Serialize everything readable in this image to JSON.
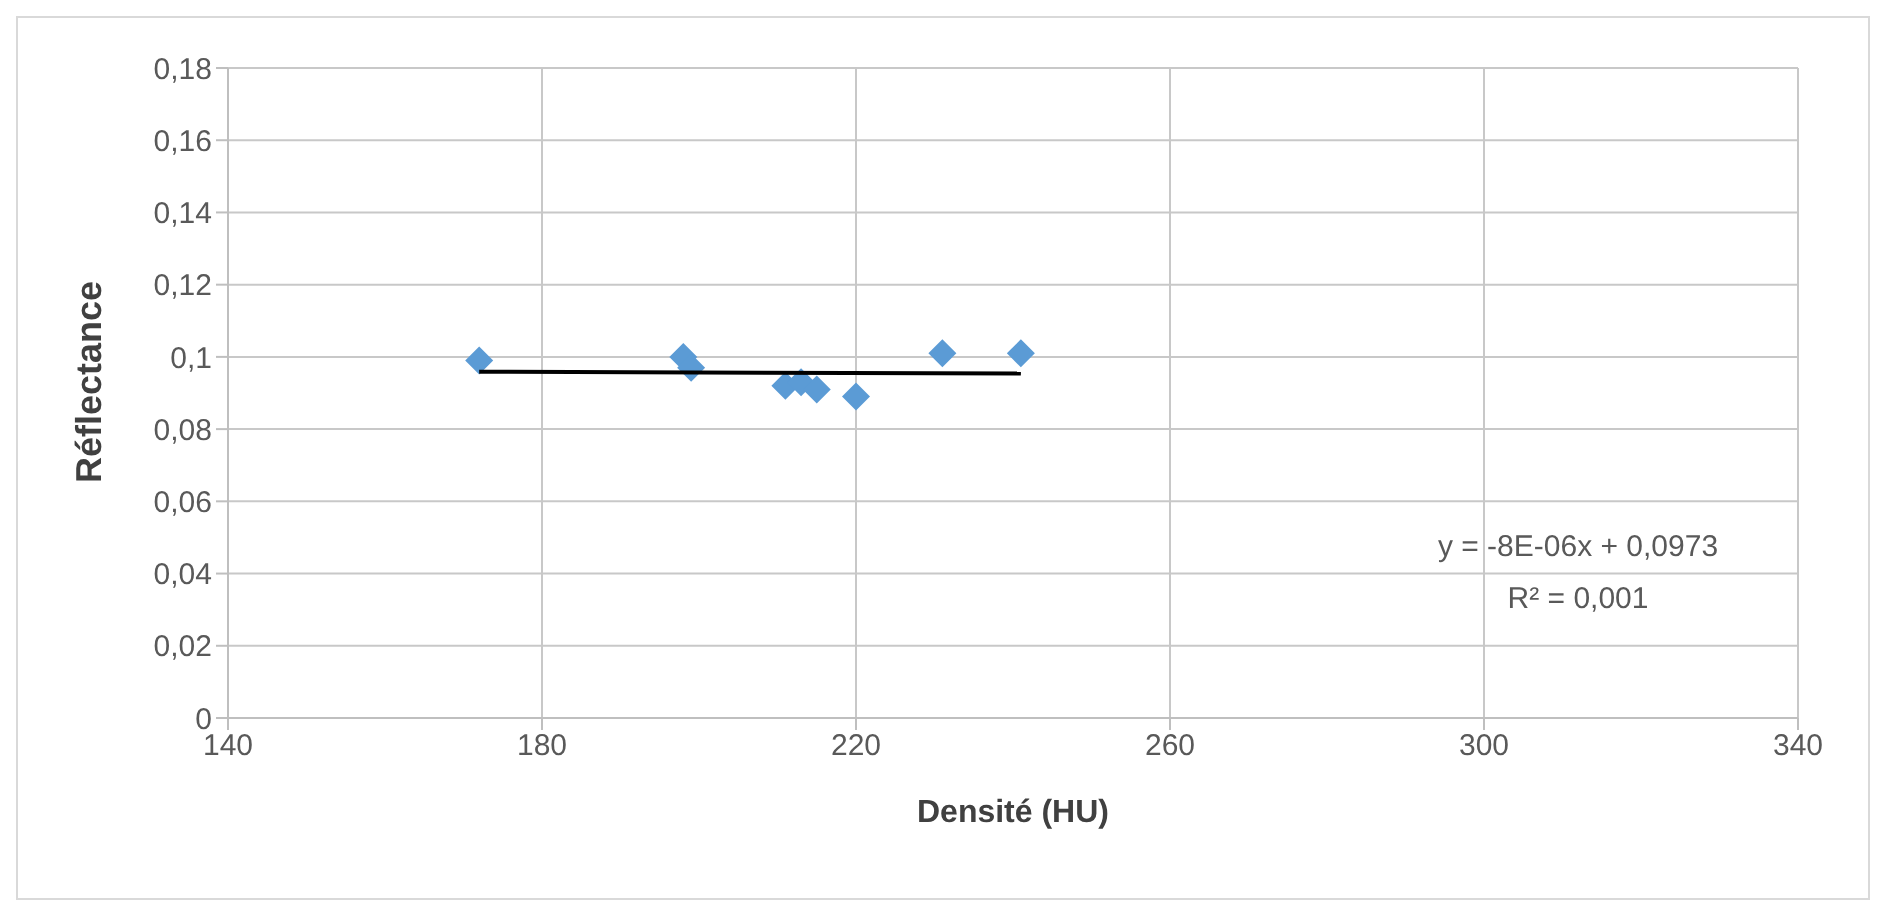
{
  "chart_data": {
    "type": "scatter",
    "xlabel": "Densité (HU)",
    "ylabel": "Réflectance",
    "xlim": [
      140,
      340
    ],
    "xticks": [
      140,
      180,
      220,
      260,
      300,
      340
    ],
    "ylim": [
      0,
      0.18
    ],
    "yticks": [
      {
        "value": 0,
        "label": "0"
      },
      {
        "value": 0.02,
        "label": "0,02"
      },
      {
        "value": 0.04,
        "label": "0,04"
      },
      {
        "value": 0.06,
        "label": "0,06"
      },
      {
        "value": 0.08,
        "label": "0,08"
      },
      {
        "value": 0.1,
        "label": "0,1"
      },
      {
        "value": 0.12,
        "label": "0,12"
      },
      {
        "value": 0.14,
        "label": "0,14"
      },
      {
        "value": 0.16,
        "label": "0,16"
      },
      {
        "value": 0.18,
        "label": "0,18"
      }
    ],
    "grid": true,
    "series": [
      {
        "color": "#5b9bd5",
        "marker": "diamond",
        "x": [
          172,
          198,
          199,
          211,
          213,
          215,
          220,
          231,
          241
        ],
        "values": [
          0.099,
          0.1,
          0.097,
          0.092,
          0.093,
          0.091,
          0.089,
          0.101,
          0.101
        ]
      },
      {
        "type": "line",
        "color": "#000000",
        "x": [
          172,
          241
        ],
        "values": [
          0.0959,
          0.0954
        ],
        "marker": "none"
      }
    ],
    "annotations": [
      "y = -8E-06x + 0,0973",
      "R² = 0,001"
    ]
  }
}
